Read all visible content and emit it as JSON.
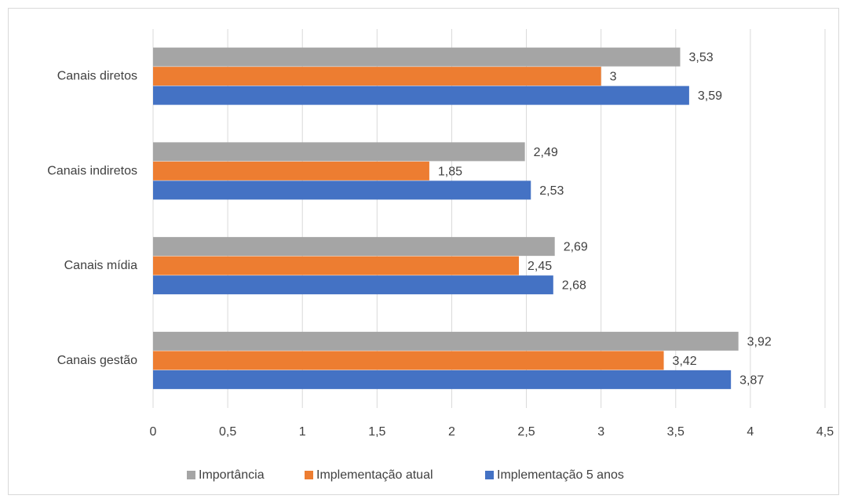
{
  "chart_data": {
    "type": "hbar",
    "categories": [
      "Canais diretos",
      "Canais indiretos",
      "Canais mídia",
      "Canais gestão"
    ],
    "series": [
      {
        "name": "Importância",
        "color": "#a5a5a5",
        "values": [
          3.53,
          2.49,
          2.69,
          3.92
        ],
        "value_labels": [
          "3,53",
          "2,49",
          "2,69",
          "3,92"
        ]
      },
      {
        "name": "Implementação atual",
        "color": "#ed7d31",
        "values": [
          3,
          1.85,
          2.45,
          3.42
        ],
        "value_labels": [
          "3",
          "1,85",
          "2,45",
          "3,42"
        ]
      },
      {
        "name": "Implementação 5 anos",
        "color": "#4472c4",
        "values": [
          3.59,
          2.53,
          2.68,
          3.87
        ],
        "value_labels": [
          "3,59",
          "2,53",
          "2,68",
          "3,87"
        ]
      }
    ],
    "xlim": [
      0,
      4.5
    ],
    "xticks": [
      0,
      {
        "value": 0.5,
        "label": "0,5"
      },
      1,
      {
        "value": 1.5,
        "label": "1,5"
      },
      2,
      {
        "value": 2.5,
        "label": "2,5"
      },
      3,
      {
        "value": 3.5,
        "label": "3,5"
      },
      4,
      {
        "value": 4.5,
        "label": "4,5"
      }
    ],
    "grid": true,
    "legend": "bottom"
  }
}
